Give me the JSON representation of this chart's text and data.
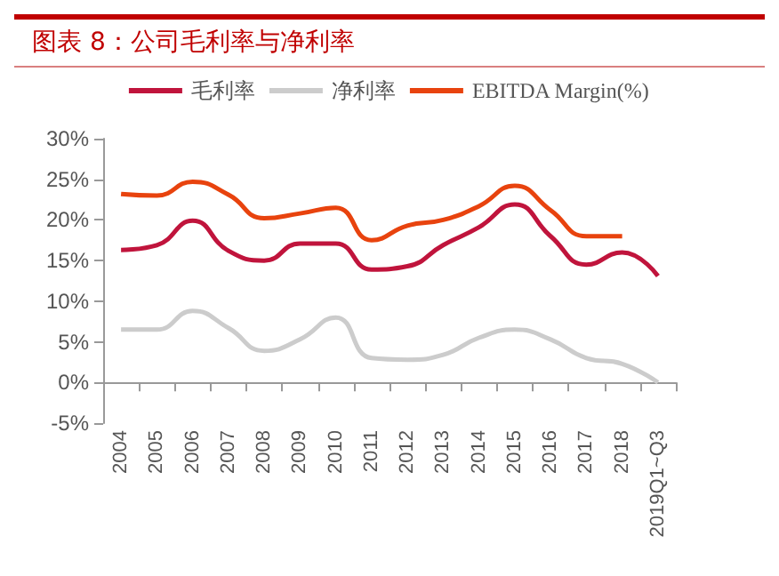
{
  "chart_data": {
    "type": "line",
    "title": "图表 8：公司毛利率与净利率",
    "categories": [
      "2004",
      "2005",
      "2006",
      "2007",
      "2008",
      "2009",
      "2010",
      "2011",
      "2012",
      "2013",
      "2014",
      "2015",
      "2016",
      "2017",
      "2018",
      "2019Q1~Q3"
    ],
    "series": [
      {
        "name": "毛利率",
        "color": "#c0143c",
        "values": [
          16.3,
          16.9,
          19.9,
          16.2,
          15.0,
          17.1,
          17.1,
          13.9,
          14.3,
          16.9,
          19.1,
          21.9,
          18.0,
          14.5,
          16.0,
          13.1
        ]
      },
      {
        "name": "净利率",
        "color": "#cccccc",
        "values": [
          6.5,
          6.5,
          8.8,
          6.7,
          3.9,
          5.3,
          8.0,
          3.0,
          2.8,
          3.4,
          5.5,
          6.5,
          5.3,
          3.0,
          2.3,
          0
        ]
      },
      {
        "name": "EBITDA Margin(%)",
        "color": "#e8430e",
        "values": [
          23.2,
          23.0,
          24.7,
          23.1,
          20.2,
          20.8,
          21.5,
          17.5,
          19.3,
          20.0,
          21.7,
          24.2,
          21.2,
          18.0,
          18.0,
          null
        ]
      }
    ],
    "ylim": [
      -5,
      30
    ],
    "yticks": [
      {
        "value": -5,
        "label": "-5%"
      },
      {
        "value": 0,
        "label": "0%"
      },
      {
        "value": 5,
        "label": "5%"
      },
      {
        "value": 10,
        "label": "10%"
      },
      {
        "value": 15,
        "label": "15%"
      },
      {
        "value": 20,
        "label": "20%"
      },
      {
        "value": 25,
        "label": "25%"
      },
      {
        "value": 30,
        "label": "30%"
      }
    ],
    "legend": "top",
    "marker": "none",
    "line_style": "solid"
  }
}
